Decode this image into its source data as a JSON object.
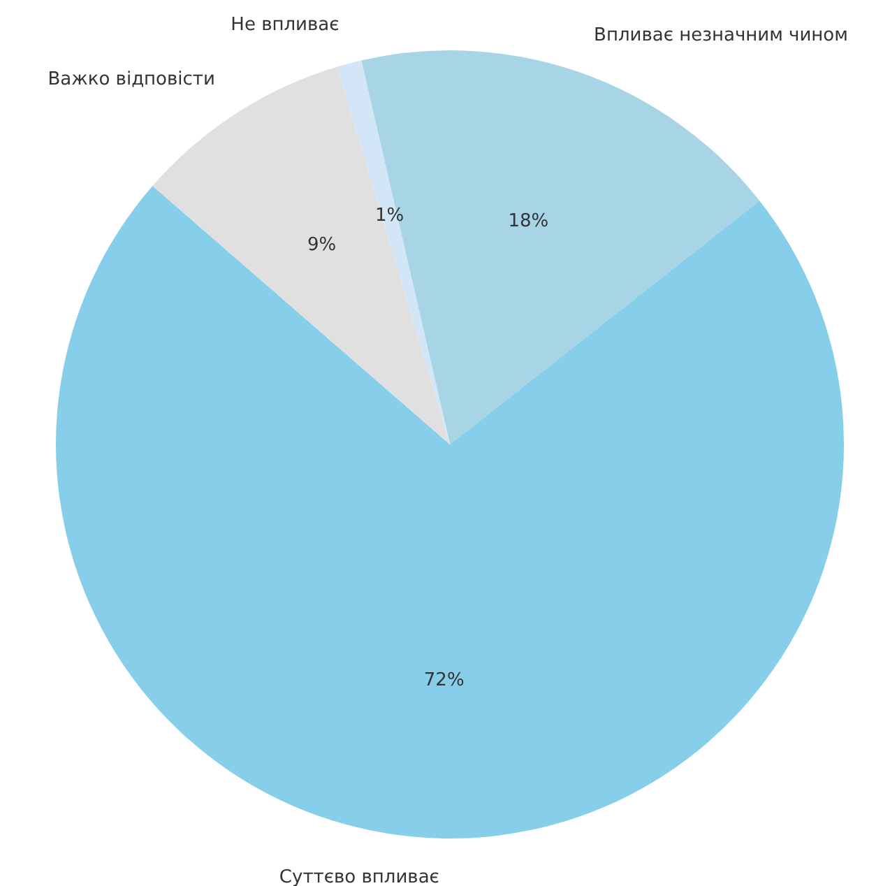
{
  "chart_data": {
    "type": "pie",
    "categories": [
      "Впливає незначним чином",
      "Суттєво впливає",
      "Важко відповісти",
      "Не впливає"
    ],
    "values": [
      18,
      72,
      9,
      1
    ],
    "colors": [
      "#a8d5e6",
      "#87ceeb",
      "#e0e0e0",
      "#d3e6f7"
    ],
    "value_labels": [
      "18%",
      "72%",
      "9%",
      "1%"
    ],
    "legend": false
  }
}
